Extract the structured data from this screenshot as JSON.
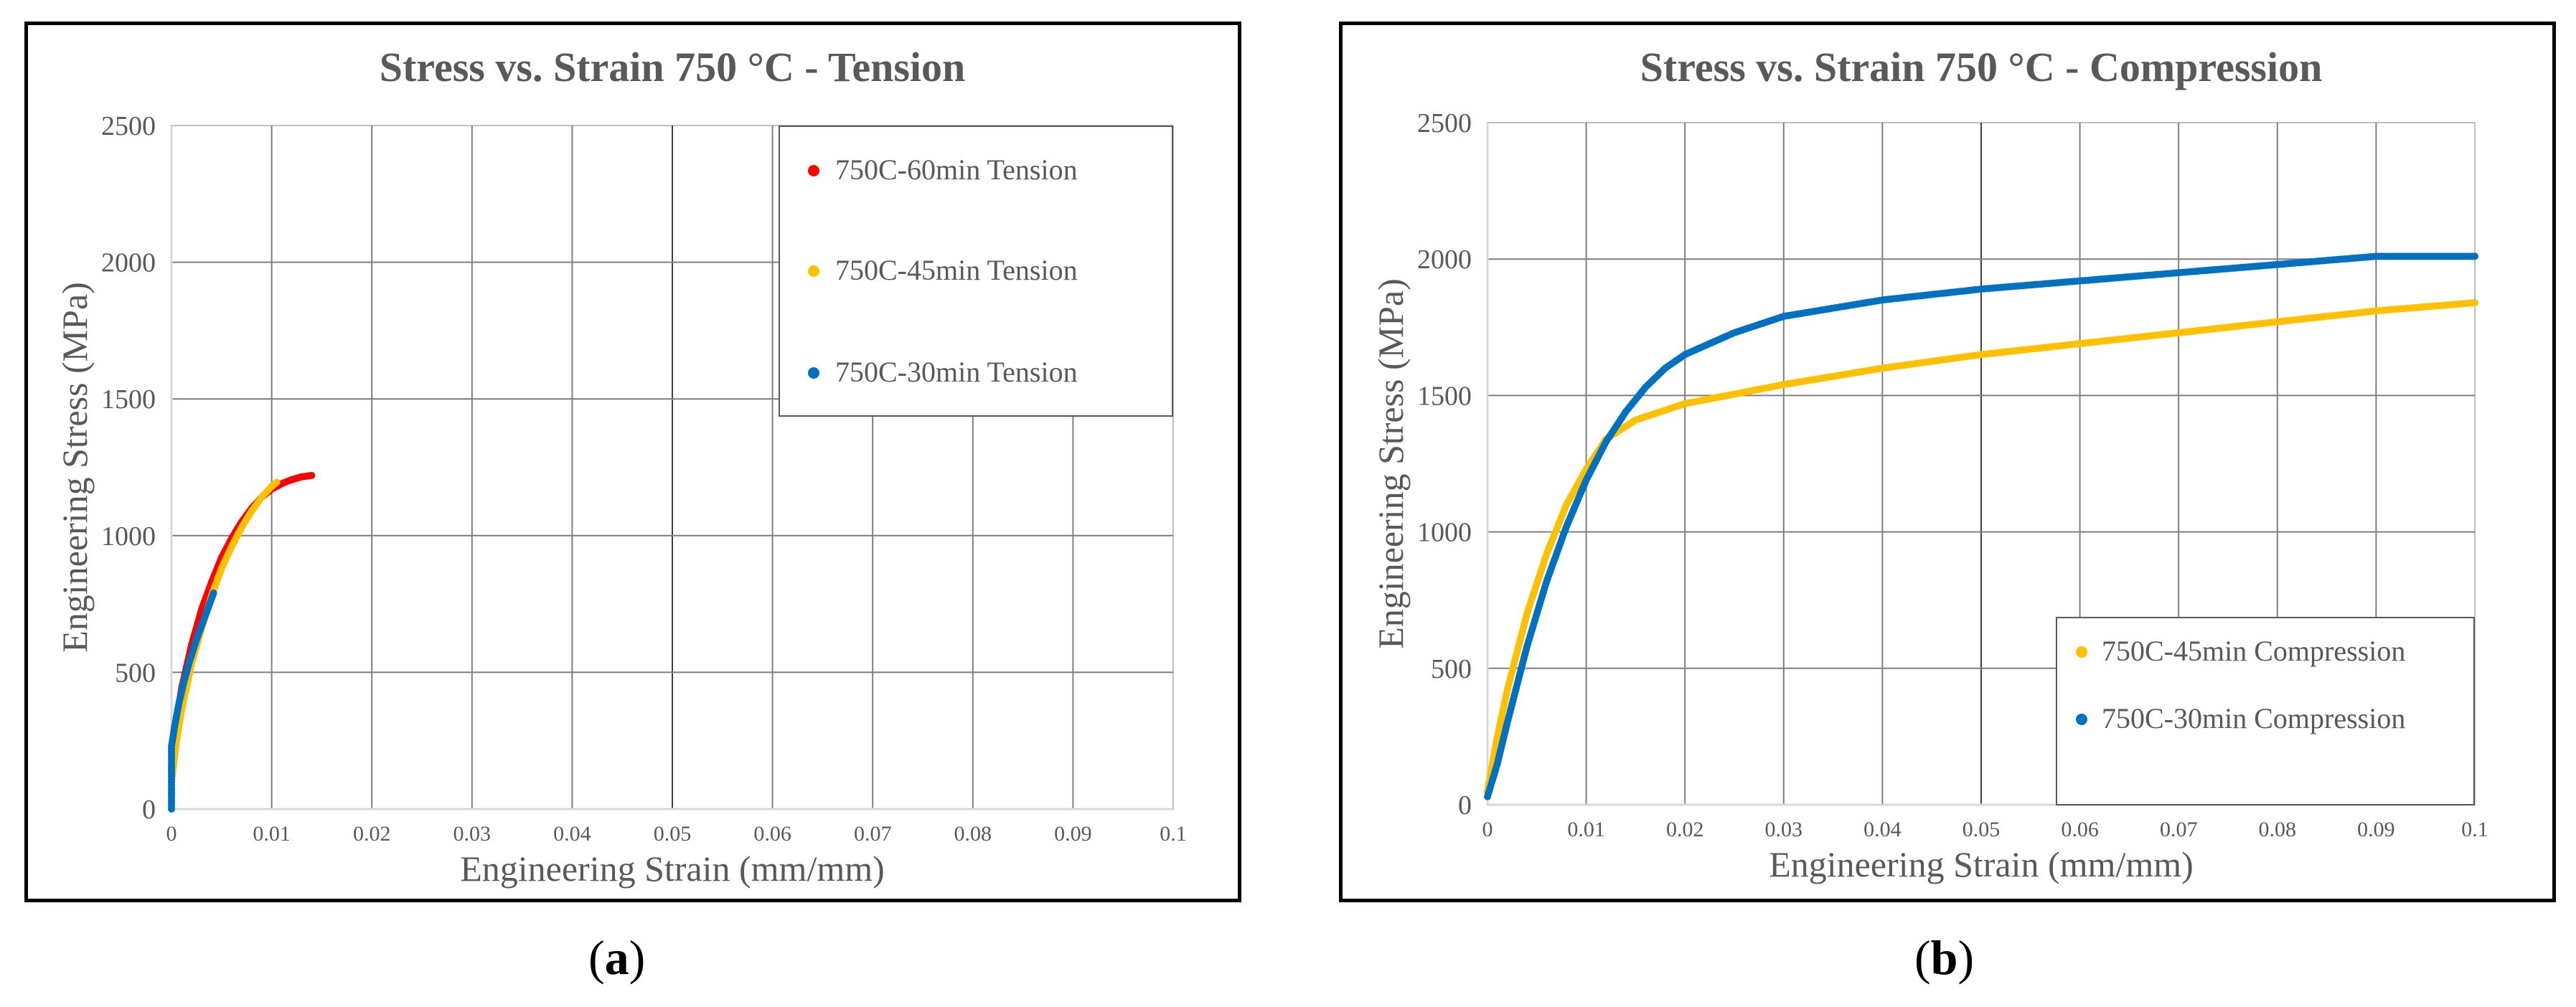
{
  "chart_data": [
    {
      "type": "scatter",
      "title": "Stress vs. Strain 750 °C - Tension",
      "xlabel": "Engineering Strain (mm/mm)",
      "ylabel": "Engineering Stress (MPa)",
      "xlim": [
        0,
        0.1
      ],
      "ylim": [
        0,
        2500
      ],
      "xticks": [
        0,
        0.01,
        0.02,
        0.03,
        0.04,
        0.05,
        0.06,
        0.07,
        0.08,
        0.09,
        0.1
      ],
      "xtick_labels": [
        "0",
        "0.01",
        "0.02",
        "0.03",
        "0.04",
        "0.05",
        "0.06",
        "0.07",
        "0.08",
        "0.09",
        "0.1"
      ],
      "yticks": [
        0,
        500,
        1000,
        1500,
        2000,
        2500
      ],
      "ytick_labels": [
        "0",
        "500",
        "1000",
        "1500",
        "2000",
        "2500"
      ],
      "grid": true,
      "legend_position": "top-right",
      "series": [
        {
          "name": "750C-60min Tension",
          "color": "#ff0000",
          "x": [
            0,
            0.0005,
            0.001,
            0.002,
            0.003,
            0.004,
            0.005,
            0.006,
            0.007,
            0.008,
            0.009,
            0.01,
            0.011,
            0.012,
            0.013,
            0.014
          ],
          "y": [
            150,
            320,
            440,
            600,
            730,
            830,
            920,
            990,
            1050,
            1100,
            1140,
            1170,
            1190,
            1205,
            1215,
            1220
          ]
        },
        {
          "name": "750C-45min Tension",
          "color": "#ffc000",
          "x": [
            0,
            0.0005,
            0.001,
            0.002,
            0.003,
            0.004,
            0.005,
            0.006,
            0.007,
            0.008,
            0.009,
            0.01,
            0.0105
          ],
          "y": [
            100,
            250,
            360,
            530,
            660,
            780,
            880,
            960,
            1030,
            1090,
            1140,
            1180,
            1195
          ]
        },
        {
          "name": "750C-30min Tension",
          "color": "#0070c0",
          "x": [
            0,
            0,
            0,
            0,
            0.0003,
            0.0007,
            0.0012,
            0.0018,
            0.0025,
            0.0032,
            0.0038,
            0.0042
          ],
          "y": [
            0,
            60,
            150,
            230,
            300,
            380,
            460,
            540,
            620,
            690,
            750,
            790
          ]
        }
      ]
    },
    {
      "type": "scatter",
      "title": "Stress vs. Strain 750 °C - Compression",
      "xlabel": "Engineering Strain (mm/mm)",
      "ylabel": "Engineering Stress (MPa)",
      "xlim": [
        0,
        0.1
      ],
      "ylim": [
        0,
        2500
      ],
      "xticks": [
        0,
        0.01,
        0.02,
        0.03,
        0.04,
        0.05,
        0.06,
        0.07,
        0.08,
        0.09,
        0.1
      ],
      "xtick_labels": [
        "0",
        "0.01",
        "0.02",
        "0.03",
        "0.04",
        "0.05",
        "0.06",
        "0.07",
        "0.08",
        "0.09",
        "0.1"
      ],
      "yticks": [
        0,
        500,
        1000,
        1500,
        2000,
        2500
      ],
      "ytick_labels": [
        "0",
        "500",
        "1000",
        "1500",
        "2000",
        "2500"
      ],
      "grid": true,
      "legend_position": "bottom-right",
      "series": [
        {
          "name": "750C-45min Compression",
          "color": "#ffc000",
          "x": [
            0,
            0.001,
            0.002,
            0.004,
            0.006,
            0.008,
            0.01,
            0.012,
            0.015,
            0.02,
            0.03,
            0.04,
            0.05,
            0.06,
            0.07,
            0.08,
            0.09,
            0.1
          ],
          "y": [
            50,
            250,
            420,
            700,
            920,
            1100,
            1230,
            1340,
            1410,
            1470,
            1540,
            1600,
            1650,
            1690,
            1730,
            1770,
            1810,
            1840
          ]
        },
        {
          "name": "750C-30min Compression",
          "color": "#0070c0",
          "x": [
            0,
            0.001,
            0.002,
            0.004,
            0.006,
            0.008,
            0.01,
            0.012,
            0.014,
            0.016,
            0.018,
            0.02,
            0.025,
            0.03,
            0.04,
            0.05,
            0.06,
            0.07,
            0.08,
            0.09,
            0.1
          ],
          "y": [
            30,
            150,
            300,
            580,
            820,
            1020,
            1190,
            1330,
            1440,
            1530,
            1600,
            1650,
            1730,
            1790,
            1850,
            1890,
            1920,
            1950,
            1980,
            2010,
            2010
          ]
        }
      ]
    }
  ],
  "captions": {
    "a": {
      "open": "(",
      "letter": "a",
      "close": ")"
    },
    "b": {
      "open": "(",
      "letter": "b",
      "close": ")"
    }
  }
}
